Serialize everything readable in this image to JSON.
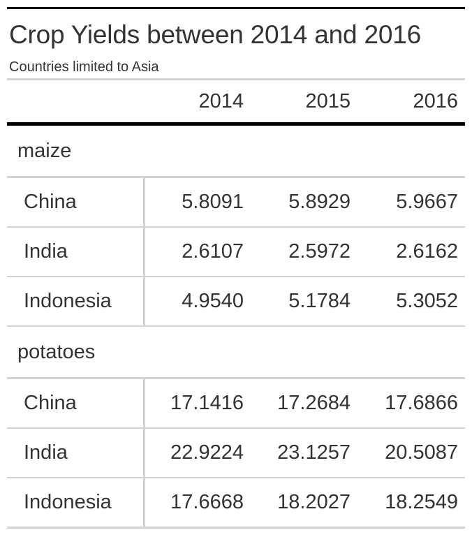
{
  "chart_data": {
    "type": "table",
    "title": "Crop Yields between 2014 and 2016",
    "subtitle": "Countries limited to Asia",
    "columns": [
      "2014",
      "2015",
      "2016"
    ],
    "groups": [
      {
        "label": "maize",
        "rows": [
          {
            "country": "China",
            "values": [
              "5.8091",
              "5.8929",
              "5.9667"
            ]
          },
          {
            "country": "India",
            "values": [
              "2.6107",
              "2.5972",
              "2.6162"
            ]
          },
          {
            "country": "Indonesia",
            "values": [
              "4.9540",
              "5.1784",
              "5.3052"
            ]
          }
        ]
      },
      {
        "label": "potatoes",
        "rows": [
          {
            "country": "China",
            "values": [
              "17.1416",
              "17.2684",
              "17.6866"
            ]
          },
          {
            "country": "India",
            "values": [
              "22.9224",
              "23.1257",
              "20.5087"
            ]
          },
          {
            "country": "Indonesia",
            "values": [
              "17.6668",
              "18.2027",
              "18.2549"
            ]
          }
        ]
      }
    ]
  }
}
